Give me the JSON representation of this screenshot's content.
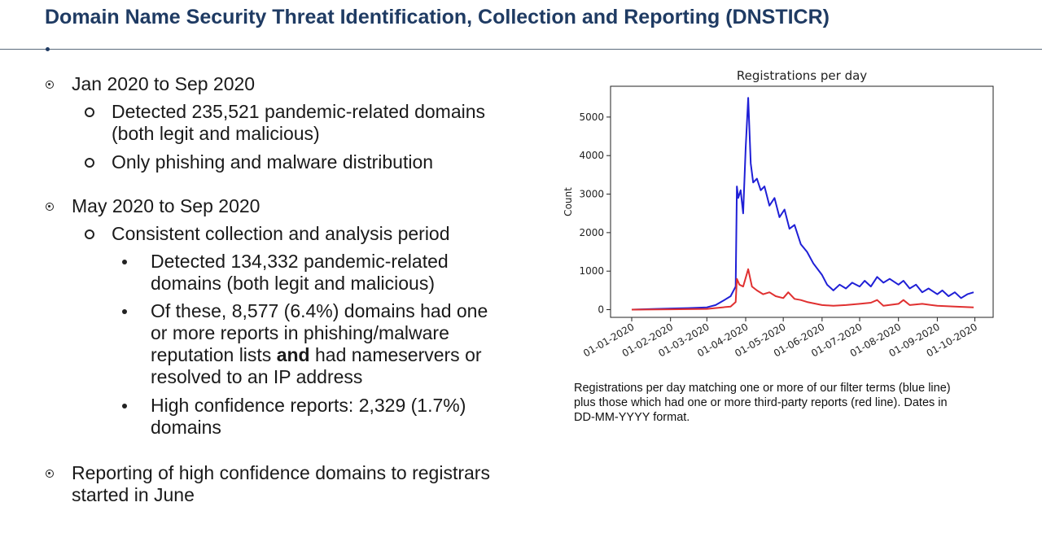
{
  "slide": {
    "title": "Domain Name Security Threat Identification, Collection and Reporting (DNSTICR)"
  },
  "bullets": {
    "b1": {
      "text": [
        "Jan 2020 to Sep 2020"
      ],
      "children": {
        "c1": {
          "text": [
            "Detected 235,521 pandemic-related domains",
            "(both legit and malicious)"
          ]
        },
        "c2": {
          "text": [
            "Only phishing and malware distribution"
          ]
        }
      }
    },
    "b2": {
      "text": [
        "May 2020 to Sep 2020"
      ],
      "children": {
        "c1": {
          "text": [
            "Consistent collection and analysis period"
          ],
          "children": {
            "d1": {
              "text": [
                "Detected 134,332 pandemic-related",
                "domains (both legit and malicious)"
              ]
            },
            "d2": {
              "line1": "Of these, 8,577 (6.4%) domains had one",
              "line2": "or more reports in phishing/malware",
              "line3_pre": "reputation lists ",
              "line3_bold": "and",
              "line3_post": " had nameservers or",
              "line4": "resolved to an IP address"
            },
            "d3": {
              "text": [
                "High confidence reports: 2,329 (1.7%)",
                "domains"
              ]
            }
          }
        }
      }
    },
    "b3": {
      "text": [
        "Reporting of high confidence domains to registrars",
        "started in June"
      ]
    }
  },
  "caption": {
    "lines": [
      "Registrations per day matching one or more of our filter terms (blue line)",
      "plus those which had one or more third-party reports (red line). Dates in",
      "DD-MM-YYYY format."
    ]
  },
  "chart_data": {
    "type": "line",
    "title": "Registrations per day",
    "xlabel": "",
    "ylabel": "Count",
    "x_ticks": [
      "01-01-2020",
      "01-02-2020",
      "01-03-2020",
      "01-04-2020",
      "01-05-2020",
      "01-06-2020",
      "01-07-2020",
      "01-08-2020",
      "01-09-2020",
      "01-10-2020"
    ],
    "y_ticks": [
      0,
      1000,
      2000,
      3000,
      4000,
      5000
    ],
    "xlim": [
      "01-01-2020",
      "30-09-2020"
    ],
    "ylim": [
      -200,
      5800
    ],
    "grid": false,
    "series": [
      {
        "color": "#1f1fd6",
        "points": [
          [
            "01-01-2020",
            0
          ],
          [
            "20-01-2020",
            20
          ],
          [
            "01-02-2020",
            30
          ],
          [
            "15-02-2020",
            40
          ],
          [
            "01-03-2020",
            60
          ],
          [
            "08-03-2020",
            120
          ],
          [
            "15-03-2020",
            250
          ],
          [
            "20-03-2020",
            350
          ],
          [
            "24-03-2020",
            600
          ],
          [
            "25-03-2020",
            3200
          ],
          [
            "26-03-2020",
            2900
          ],
          [
            "28-03-2020",
            3100
          ],
          [
            "30-03-2020",
            2500
          ],
          [
            "01-04-2020",
            4200
          ],
          [
            "03-04-2020",
            5500
          ],
          [
            "05-04-2020",
            3800
          ],
          [
            "07-04-2020",
            3300
          ],
          [
            "10-04-2020",
            3400
          ],
          [
            "13-04-2020",
            3100
          ],
          [
            "16-04-2020",
            3200
          ],
          [
            "20-04-2020",
            2700
          ],
          [
            "24-04-2020",
            2900
          ],
          [
            "28-04-2020",
            2400
          ],
          [
            "02-05-2020",
            2600
          ],
          [
            "06-05-2020",
            2100
          ],
          [
            "10-05-2020",
            2200
          ],
          [
            "15-05-2020",
            1700
          ],
          [
            "20-05-2020",
            1500
          ],
          [
            "25-05-2020",
            1200
          ],
          [
            "01-06-2020",
            900
          ],
          [
            "05-06-2020",
            650
          ],
          [
            "10-06-2020",
            500
          ],
          [
            "15-06-2020",
            650
          ],
          [
            "20-06-2020",
            550
          ],
          [
            "25-06-2020",
            700
          ],
          [
            "01-07-2020",
            600
          ],
          [
            "05-07-2020",
            750
          ],
          [
            "10-07-2020",
            600
          ],
          [
            "15-07-2020",
            850
          ],
          [
            "20-07-2020",
            700
          ],
          [
            "25-07-2020",
            800
          ],
          [
            "01-08-2020",
            650
          ],
          [
            "05-08-2020",
            750
          ],
          [
            "10-08-2020",
            550
          ],
          [
            "15-08-2020",
            650
          ],
          [
            "20-08-2020",
            450
          ],
          [
            "25-08-2020",
            550
          ],
          [
            "01-09-2020",
            400
          ],
          [
            "05-09-2020",
            500
          ],
          [
            "10-09-2020",
            350
          ],
          [
            "15-09-2020",
            450
          ],
          [
            "20-09-2020",
            300
          ],
          [
            "25-09-2020",
            400
          ],
          [
            "30-09-2020",
            450
          ]
        ]
      },
      {
        "color": "#e03030",
        "points": [
          [
            "01-01-2020",
            0
          ],
          [
            "01-02-2020",
            10
          ],
          [
            "01-03-2020",
            20
          ],
          [
            "20-03-2020",
            80
          ],
          [
            "24-03-2020",
            200
          ],
          [
            "25-03-2020",
            800
          ],
          [
            "27-03-2020",
            650
          ],
          [
            "30-03-2020",
            600
          ],
          [
            "03-04-2020",
            1050
          ],
          [
            "06-04-2020",
            600
          ],
          [
            "10-04-2020",
            500
          ],
          [
            "15-04-2020",
            400
          ],
          [
            "20-04-2020",
            450
          ],
          [
            "25-04-2020",
            350
          ],
          [
            "01-05-2020",
            300
          ],
          [
            "05-05-2020",
            450
          ],
          [
            "10-05-2020",
            280
          ],
          [
            "15-05-2020",
            250
          ],
          [
            "20-05-2020",
            200
          ],
          [
            "01-06-2020",
            120
          ],
          [
            "10-06-2020",
            100
          ],
          [
            "20-06-2020",
            120
          ],
          [
            "01-07-2020",
            150
          ],
          [
            "10-07-2020",
            180
          ],
          [
            "15-07-2020",
            250
          ],
          [
            "20-07-2020",
            100
          ],
          [
            "01-08-2020",
            150
          ],
          [
            "05-08-2020",
            250
          ],
          [
            "10-08-2020",
            120
          ],
          [
            "20-08-2020",
            150
          ],
          [
            "01-09-2020",
            100
          ],
          [
            "15-09-2020",
            80
          ],
          [
            "30-09-2020",
            60
          ]
        ]
      }
    ]
  }
}
